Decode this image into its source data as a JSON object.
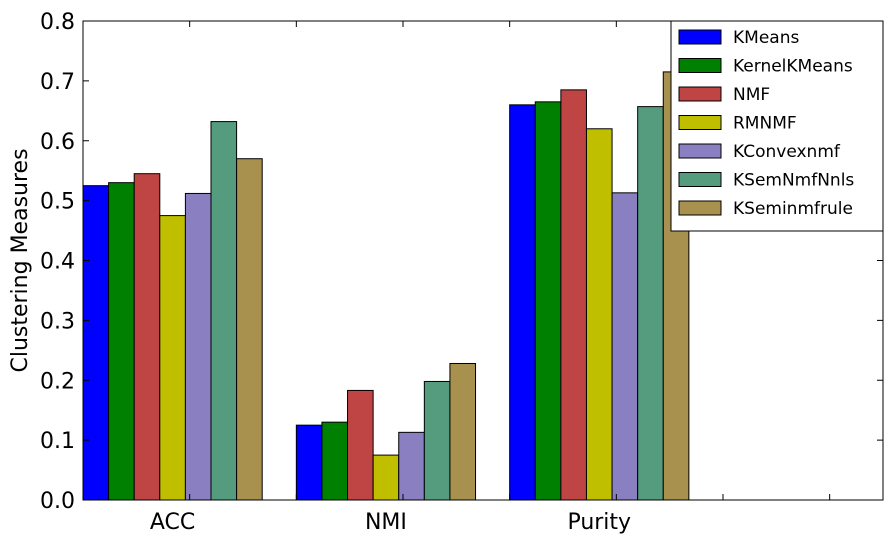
{
  "chart_data": {
    "type": "bar",
    "title": "",
    "xlabel": "",
    "ylabel": "Clustering Measures",
    "ylim": [
      0,
      0.8
    ],
    "yticks": [
      "0.0",
      "0.1",
      "0.2",
      "0.3",
      "0.4",
      "0.5",
      "0.6",
      "0.7",
      "0.8"
    ],
    "categories": [
      "ACC",
      "NMI",
      "Purity"
    ],
    "grid": false,
    "legend_position": "top-right",
    "series": [
      {
        "name": "KMeans",
        "color": "#0000ff",
        "values": [
          0.525,
          0.125,
          0.66
        ]
      },
      {
        "name": "KernelKMeans",
        "color": "#008000",
        "values": [
          0.53,
          0.13,
          0.665
        ]
      },
      {
        "name": "NMF",
        "color": "#bf4545",
        "values": [
          0.545,
          0.183,
          0.685
        ]
      },
      {
        "name": "RMNMF",
        "color": "#bfbf00",
        "values": [
          0.475,
          0.075,
          0.62
        ]
      },
      {
        "name": "KConvexnmf",
        "color": "#8a7fc0",
        "values": [
          0.512,
          0.113,
          0.513
        ]
      },
      {
        "name": "KSemNmfNnls",
        "color": "#559c7e",
        "values": [
          0.632,
          0.198,
          0.657
        ]
      },
      {
        "name": "KSeminmfrule",
        "color": "#a8904f",
        "values": [
          0.57,
          0.228,
          0.715
        ]
      }
    ]
  }
}
